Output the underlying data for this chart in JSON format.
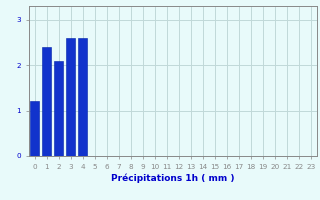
{
  "values": [
    1.2,
    2.4,
    2.1,
    2.6,
    2.6,
    0,
    0,
    0,
    0,
    0,
    0,
    0,
    0,
    0,
    0,
    0,
    0,
    0,
    0,
    0,
    0,
    0,
    0,
    0
  ],
  "bar_color": "#1133cc",
  "bar_edge_color": "#0022aa",
  "background_color": "#e8fafa",
  "grid_color": "#c0d8d8",
  "xlabel": "Précipitations 1h ( mm )",
  "xlabel_color": "#0000cc",
  "xlabel_fontsize": 6.5,
  "tick_color": "#0000cc",
  "tick_fontsize": 5.2,
  "yticks": [
    0,
    1,
    2,
    3
  ],
  "ylim": [
    0,
    3.3
  ],
  "xlim": [
    -0.5,
    23.5
  ],
  "num_bars": 24
}
